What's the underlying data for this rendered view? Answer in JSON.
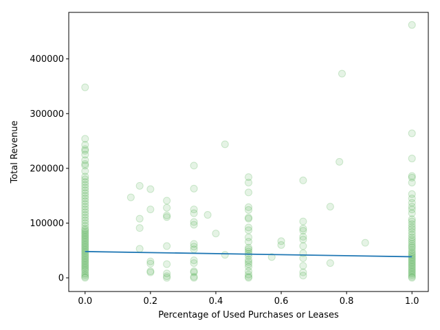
{
  "chart_data": {
    "type": "scatter",
    "xlabel": "Percentage of Used Purchases or Leases",
    "ylabel": "Total Revenue",
    "xlim": [
      -0.05,
      1.05
    ],
    "ylim": [
      -25000,
      485000
    ],
    "xticks": [
      0.0,
      0.2,
      0.4,
      0.6,
      0.8,
      1.0
    ],
    "xtick_labels": [
      "0.0",
      "0.2",
      "0.4",
      "0.6",
      "0.8",
      "1.0"
    ],
    "yticks": [
      0,
      100000,
      200000,
      300000,
      400000
    ],
    "ytick_labels": [
      "0",
      "100000",
      "200000",
      "300000",
      "400000"
    ],
    "grid": false,
    "scatter_color": "#2ca02c",
    "line_color": "#1f77b4",
    "series": [
      {
        "type": "scatter",
        "points": [
          [
            0.0,
            0
          ],
          [
            0.0,
            2000
          ],
          [
            0.0,
            5000
          ],
          [
            0.0,
            8000
          ],
          [
            0.0,
            12000
          ],
          [
            0.0,
            15000
          ],
          [
            0.0,
            18000
          ],
          [
            0.0,
            21000
          ],
          [
            0.0,
            24000
          ],
          [
            0.0,
            27000
          ],
          [
            0.0,
            30000
          ],
          [
            0.0,
            33000
          ],
          [
            0.0,
            36000
          ],
          [
            0.0,
            39000
          ],
          [
            0.0,
            42000
          ],
          [
            0.0,
            45000
          ],
          [
            0.0,
            48000
          ],
          [
            0.0,
            51000
          ],
          [
            0.0,
            54000
          ],
          [
            0.0,
            57000
          ],
          [
            0.0,
            60000
          ],
          [
            0.0,
            63000
          ],
          [
            0.0,
            66000
          ],
          [
            0.0,
            69000
          ],
          [
            0.0,
            72000
          ],
          [
            0.0,
            75000
          ],
          [
            0.0,
            78000
          ],
          [
            0.0,
            81000
          ],
          [
            0.0,
            84000
          ],
          [
            0.0,
            87000
          ],
          [
            0.0,
            90000
          ],
          [
            0.0,
            95000
          ],
          [
            0.0,
            100000
          ],
          [
            0.0,
            105000
          ],
          [
            0.0,
            110000
          ],
          [
            0.0,
            115000
          ],
          [
            0.0,
            120000
          ],
          [
            0.0,
            125000
          ],
          [
            0.0,
            130000
          ],
          [
            0.0,
            135000
          ],
          [
            0.0,
            140000
          ],
          [
            0.0,
            145000
          ],
          [
            0.0,
            150000
          ],
          [
            0.0,
            155000
          ],
          [
            0.0,
            160000
          ],
          [
            0.0,
            165000
          ],
          [
            0.0,
            170000
          ],
          [
            0.0,
            175000
          ],
          [
            0.0,
            180000
          ],
          [
            0.0,
            185000
          ],
          [
            0.0,
            195000
          ],
          [
            0.0,
            205000
          ],
          [
            0.0,
            208000
          ],
          [
            0.0,
            215000
          ],
          [
            0.0,
            225000
          ],
          [
            0.0,
            232000
          ],
          [
            0.0,
            235000
          ],
          [
            0.0,
            243000
          ],
          [
            0.0,
            254000
          ],
          [
            0.0,
            348000
          ],
          [
            0.14,
            147000
          ],
          [
            0.167,
            168000
          ],
          [
            0.167,
            108000
          ],
          [
            0.167,
            91000
          ],
          [
            0.167,
            53000
          ],
          [
            0.2,
            162000
          ],
          [
            0.2,
            125000
          ],
          [
            0.2,
            30000
          ],
          [
            0.2,
            26000
          ],
          [
            0.2,
            12000
          ],
          [
            0.2,
            10000
          ],
          [
            0.25,
            141000
          ],
          [
            0.25,
            128000
          ],
          [
            0.25,
            114000
          ],
          [
            0.25,
            111000
          ],
          [
            0.25,
            58000
          ],
          [
            0.25,
            25000
          ],
          [
            0.25,
            8000
          ],
          [
            0.25,
            3000
          ],
          [
            0.25,
            0
          ],
          [
            0.333,
            205000
          ],
          [
            0.333,
            163000
          ],
          [
            0.333,
            125000
          ],
          [
            0.333,
            118000
          ],
          [
            0.333,
            102000
          ],
          [
            0.333,
            97000
          ],
          [
            0.333,
            62000
          ],
          [
            0.333,
            57000
          ],
          [
            0.333,
            52000
          ],
          [
            0.333,
            32000
          ],
          [
            0.333,
            27000
          ],
          [
            0.333,
            12000
          ],
          [
            0.333,
            10000
          ],
          [
            0.333,
            2000
          ],
          [
            0.333,
            0
          ],
          [
            0.375,
            115000
          ],
          [
            0.4,
            81000
          ],
          [
            0.428,
            244000
          ],
          [
            0.428,
            42000
          ],
          [
            0.5,
            184000
          ],
          [
            0.5,
            174000
          ],
          [
            0.5,
            156000
          ],
          [
            0.5,
            129000
          ],
          [
            0.5,
            124000
          ],
          [
            0.5,
            110000
          ],
          [
            0.5,
            108000
          ],
          [
            0.5,
            92000
          ],
          [
            0.5,
            87000
          ],
          [
            0.5,
            74000
          ],
          [
            0.5,
            66000
          ],
          [
            0.5,
            55000
          ],
          [
            0.5,
            52000
          ],
          [
            0.5,
            48000
          ],
          [
            0.5,
            44000
          ],
          [
            0.5,
            40000
          ],
          [
            0.5,
            33000
          ],
          [
            0.5,
            29000
          ],
          [
            0.5,
            25000
          ],
          [
            0.5,
            20000
          ],
          [
            0.5,
            12000
          ],
          [
            0.5,
            6000
          ],
          [
            0.5,
            2000
          ],
          [
            0.5,
            0
          ],
          [
            0.571,
            38000
          ],
          [
            0.6,
            67000
          ],
          [
            0.6,
            60000
          ],
          [
            0.667,
            178000
          ],
          [
            0.667,
            103000
          ],
          [
            0.667,
            90000
          ],
          [
            0.667,
            86000
          ],
          [
            0.667,
            75000
          ],
          [
            0.667,
            70000
          ],
          [
            0.667,
            58000
          ],
          [
            0.667,
            45000
          ],
          [
            0.667,
            36000
          ],
          [
            0.667,
            22000
          ],
          [
            0.667,
            10000
          ],
          [
            0.667,
            4000
          ],
          [
            0.75,
            130000
          ],
          [
            0.75,
            27000
          ],
          [
            0.778,
            212000
          ],
          [
            0.786,
            373000
          ],
          [
            0.857,
            64000
          ],
          [
            1.0,
            462000
          ],
          [
            1.0,
            264000
          ],
          [
            1.0,
            218000
          ],
          [
            1.0,
            186000
          ],
          [
            1.0,
            183000
          ],
          [
            1.0,
            174000
          ],
          [
            1.0,
            153000
          ],
          [
            1.0,
            145000
          ],
          [
            1.0,
            137000
          ],
          [
            1.0,
            130000
          ],
          [
            1.0,
            125000
          ],
          [
            1.0,
            118000
          ],
          [
            1.0,
            107000
          ],
          [
            1.0,
            103000
          ],
          [
            1.0,
            98000
          ],
          [
            1.0,
            93000
          ],
          [
            1.0,
            89000
          ],
          [
            1.0,
            84000
          ],
          [
            1.0,
            79000
          ],
          [
            1.0,
            74000
          ],
          [
            1.0,
            70000
          ],
          [
            1.0,
            66000
          ],
          [
            1.0,
            62000
          ],
          [
            1.0,
            58000
          ],
          [
            1.0,
            55000
          ],
          [
            1.0,
            51000
          ],
          [
            1.0,
            47000
          ],
          [
            1.0,
            44000
          ],
          [
            1.0,
            41000
          ],
          [
            1.0,
            38000
          ],
          [
            1.0,
            35000
          ],
          [
            1.0,
            32000
          ],
          [
            1.0,
            29000
          ],
          [
            1.0,
            26000
          ],
          [
            1.0,
            23000
          ],
          [
            1.0,
            20000
          ],
          [
            1.0,
            17000
          ],
          [
            1.0,
            14000
          ],
          [
            1.0,
            11000
          ],
          [
            1.0,
            8000
          ],
          [
            1.0,
            5000
          ],
          [
            1.0,
            2000
          ],
          [
            1.0,
            0
          ]
        ]
      },
      {
        "type": "line",
        "points": [
          [
            0.0,
            48000
          ],
          [
            1.0,
            38500
          ]
        ]
      }
    ]
  }
}
